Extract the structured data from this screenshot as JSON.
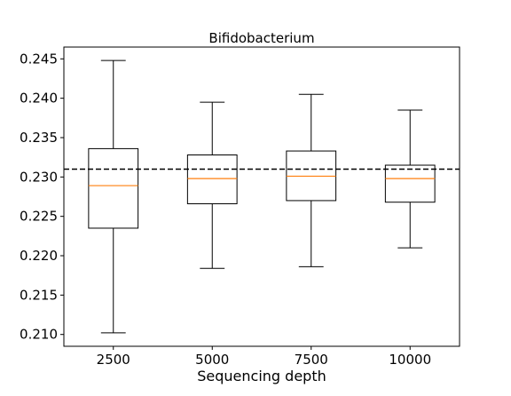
{
  "chart_data": {
    "type": "box",
    "title": "Bifidobacterium",
    "xlabel": "Sequencing depth",
    "ylabel": "",
    "categories": [
      "2500",
      "5000",
      "7500",
      "10000"
    ],
    "ylim": [
      0.2085,
      0.2465
    ],
    "yticks": [
      "0.210",
      "0.215",
      "0.220",
      "0.225",
      "0.230",
      "0.235",
      "0.240",
      "0.245"
    ],
    "boxes": [
      {
        "category": "2500",
        "whisker_low": 0.2102,
        "q1": 0.2235,
        "median": 0.2289,
        "q3": 0.2336,
        "whisker_high": 0.2448
      },
      {
        "category": "5000",
        "whisker_low": 0.2184,
        "q1": 0.2266,
        "median": 0.2298,
        "q3": 0.2328,
        "whisker_high": 0.2395
      },
      {
        "category": "7500",
        "whisker_low": 0.2186,
        "q1": 0.227,
        "median": 0.2301,
        "q3": 0.2333,
        "whisker_high": 0.2405
      },
      {
        "category": "10000",
        "whisker_low": 0.221,
        "q1": 0.2268,
        "median": 0.2298,
        "q3": 0.2315,
        "whisker_high": 0.2385
      }
    ],
    "reference_line": {
      "y": 0.231,
      "style": "dashed"
    },
    "grid": false,
    "colors": {
      "box": "#000000",
      "median": "#ff7f0e",
      "reference": "#000000"
    }
  }
}
